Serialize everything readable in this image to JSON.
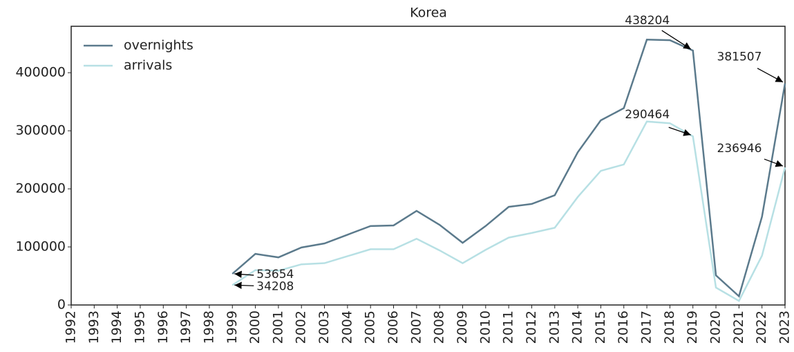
{
  "chart_data": {
    "type": "line",
    "title": "Korea",
    "categories": [
      "1992",
      "1993",
      "1994",
      "1995",
      "1996",
      "1997",
      "1998",
      "1999",
      "2000",
      "2001",
      "2002",
      "2003",
      "2004",
      "2005",
      "2006",
      "2007",
      "2008",
      "2009",
      "2010",
      "2011",
      "2012",
      "2013",
      "2014",
      "2015",
      "2016",
      "2017",
      "2018",
      "2019",
      "2020",
      "2021",
      "2022",
      "2023"
    ],
    "series": [
      {
        "name": "overnights",
        "color": "#5b7a8c",
        "values": [
          null,
          null,
          null,
          null,
          null,
          null,
          null,
          53654,
          88000,
          82000,
          99000,
          106000,
          121000,
          136000,
          137000,
          162000,
          138000,
          107000,
          136000,
          169000,
          174000,
          189000,
          263000,
          318000,
          339000,
          457000,
          456000,
          438204,
          51000,
          15000,
          152000,
          381507
        ]
      },
      {
        "name": "arrivals",
        "color": "#b7e0e4",
        "values": [
          null,
          null,
          null,
          null,
          null,
          null,
          null,
          34208,
          60000,
          59000,
          70000,
          72000,
          84000,
          96000,
          96000,
          114000,
          94000,
          72000,
          95000,
          116000,
          124000,
          133000,
          186000,
          231000,
          242000,
          316000,
          313000,
          290464,
          30000,
          7000,
          85000,
          236946
        ]
      }
    ],
    "ylim": [
      0,
      480000
    ],
    "yticks": [
      0,
      100000,
      200000,
      300000,
      400000
    ],
    "legend": "upper left",
    "grid": false
  }
}
